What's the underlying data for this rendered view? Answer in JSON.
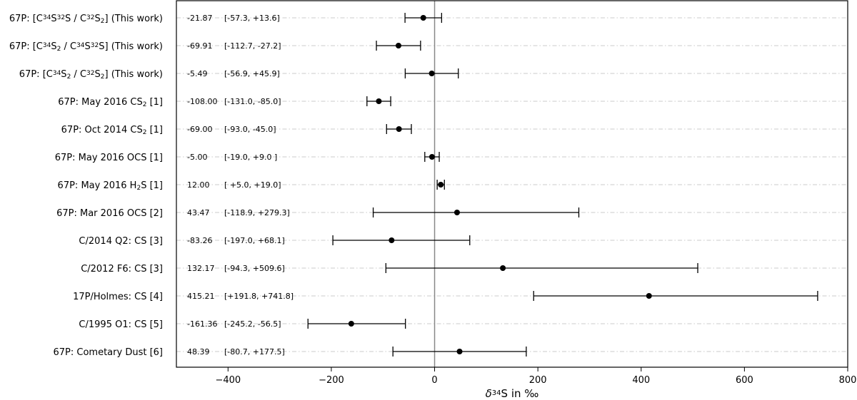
{
  "chart_data": {
    "type": "scatter",
    "orientation": "horizontal-errorbar",
    "title": "",
    "xlabel": "δ34S in ‰",
    "xlabel_parts": [
      {
        "t": "δ",
        "s": "i"
      },
      {
        "t": "34",
        "s": "sup"
      },
      {
        "t": "S in ‰",
        "s": "n"
      }
    ],
    "ylabel": "",
    "xlim": [
      -500,
      800
    ],
    "xticks": [
      -400,
      -200,
      0,
      200,
      400,
      600,
      800
    ],
    "xtick_labels": [
      "−400",
      "−200",
      "0",
      "200",
      "400",
      "600",
      "800"
    ],
    "reference_line_x": 0,
    "grid": "horizontal dash-dot",
    "rows": [
      {
        "label": "67P: [C34S32S / C32S2] (This work)",
        "label_parts": [
          {
            "t": "67P: [C",
            "s": "n"
          },
          {
            "t": "34",
            "s": "sup"
          },
          {
            "t": "S",
            "s": "n"
          },
          {
            "t": "32",
            "s": "sup"
          },
          {
            "t": "S / C",
            "s": "n"
          },
          {
            "t": "32",
            "s": "sup"
          },
          {
            "t": "S",
            "s": "n"
          },
          {
            "t": "2",
            "s": "sub"
          },
          {
            "t": "] (This work)",
            "s": "n"
          }
        ],
        "value": -21.87,
        "low": -57.3,
        "high": 13.6,
        "value_text": "-21.87",
        "range_text": "[-57.3, +13.6]"
      },
      {
        "label": "67P: [C34S2 / C34S32S] (This work)",
        "label_parts": [
          {
            "t": "67P: [C",
            "s": "n"
          },
          {
            "t": "34",
            "s": "sup"
          },
          {
            "t": "S",
            "s": "n"
          },
          {
            "t": "2",
            "s": "sub"
          },
          {
            "t": " / C",
            "s": "n"
          },
          {
            "t": "34",
            "s": "sup"
          },
          {
            "t": "S",
            "s": "n"
          },
          {
            "t": "32",
            "s": "sup"
          },
          {
            "t": "S] (This work)",
            "s": "n"
          }
        ],
        "value": -69.91,
        "low": -112.7,
        "high": -27.2,
        "value_text": "-69.91",
        "range_text": "[-112.7, -27.2]"
      },
      {
        "label": "67P: [C34S2 / C32S2] (This work)",
        "label_parts": [
          {
            "t": "67P: [C",
            "s": "n"
          },
          {
            "t": "34",
            "s": "sup"
          },
          {
            "t": "S",
            "s": "n"
          },
          {
            "t": "2",
            "s": "sub"
          },
          {
            "t": " / C",
            "s": "n"
          },
          {
            "t": "32",
            "s": "sup"
          },
          {
            "t": "S",
            "s": "n"
          },
          {
            "t": "2",
            "s": "sub"
          },
          {
            "t": "] (This work)",
            "s": "n"
          }
        ],
        "value": -5.49,
        "low": -56.9,
        "high": 45.9,
        "value_text": "-5.49",
        "range_text": "[-56.9, +45.9]"
      },
      {
        "label": "67P: May 2016 CS2 [1]",
        "label_parts": [
          {
            "t": "67P: May 2016 CS",
            "s": "n"
          },
          {
            "t": "2",
            "s": "sub"
          },
          {
            "t": " [1]",
            "s": "n"
          }
        ],
        "value": -108.0,
        "low": -131.0,
        "high": -85.0,
        "value_text": "-108.00",
        "range_text": "[-131.0, -85.0]"
      },
      {
        "label": "67P: Oct 2014 CS2 [1]",
        "label_parts": [
          {
            "t": "67P: Oct 2014 CS",
            "s": "n"
          },
          {
            "t": "2",
            "s": "sub"
          },
          {
            "t": " [1]",
            "s": "n"
          }
        ],
        "value": -69.0,
        "low": -93.0,
        "high": -45.0,
        "value_text": "-69.00",
        "range_text": "[-93.0, -45.0]"
      },
      {
        "label": "67P: May 2016 OCS [1]",
        "label_parts": [
          {
            "t": "67P: May 2016 OCS [1]",
            "s": "n"
          }
        ],
        "value": -5.0,
        "low": -19.0,
        "high": 9.0,
        "value_text": "-5.00",
        "range_text": "[-19.0, +9.0 ]"
      },
      {
        "label": "67P: May 2016 H2S [1]",
        "label_parts": [
          {
            "t": "67P: May 2016 H",
            "s": "n"
          },
          {
            "t": "2",
            "s": "sub"
          },
          {
            "t": "S [1]",
            "s": "n"
          }
        ],
        "value": 12.0,
        "low": 5.0,
        "high": 19.0,
        "value_text": "12.00",
        "range_text": "[ +5.0, +19.0]"
      },
      {
        "label": "67P:  Mar 2016 OCS [2]",
        "label_parts": [
          {
            "t": "67P:  Mar 2016 OCS [2]",
            "s": "n"
          }
        ],
        "value": 43.47,
        "low": -118.9,
        "high": 279.3,
        "value_text": "43.47",
        "range_text": "[-118.9, +279.3]"
      },
      {
        "label": "C/2014 Q2: CS [3]",
        "label_parts": [
          {
            "t": "C/2014 Q2: CS [3]",
            "s": "n"
          }
        ],
        "value": -83.26,
        "low": -197.0,
        "high": 68.1,
        "value_text": "-83.26",
        "range_text": "[-197.0, +68.1]"
      },
      {
        "label": "C/2012 F6: CS [3]",
        "label_parts": [
          {
            "t": "C/2012 F6: CS [3]",
            "s": "n"
          }
        ],
        "value": 132.17,
        "low": -94.3,
        "high": 509.6,
        "value_text": "132.17",
        "range_text": "[-94.3, +509.6]"
      },
      {
        "label": "17P/Holmes: CS [4]",
        "label_parts": [
          {
            "t": "17P/Holmes: CS [4]",
            "s": "n"
          }
        ],
        "value": 415.21,
        "low": 191.8,
        "high": 741.8,
        "value_text": "415.21",
        "range_text": "[+191.8, +741.8]"
      },
      {
        "label": "C/1995 O1: CS [5]",
        "label_parts": [
          {
            "t": "C/1995 O1: CS [5]",
            "s": "n"
          }
        ],
        "value": -161.36,
        "low": -245.2,
        "high": -56.5,
        "value_text": "-161.36",
        "range_text": "[-245.2, -56.5]"
      },
      {
        "label": "67P: Cometary Dust [6]",
        "label_parts": [
          {
            "t": "67P: Cometary Dust [6]",
            "s": "n"
          }
        ],
        "value": 48.39,
        "low": -80.7,
        "high": 177.5,
        "value_text": "48.39",
        "range_text": "[-80.7, +177.5]"
      }
    ]
  }
}
